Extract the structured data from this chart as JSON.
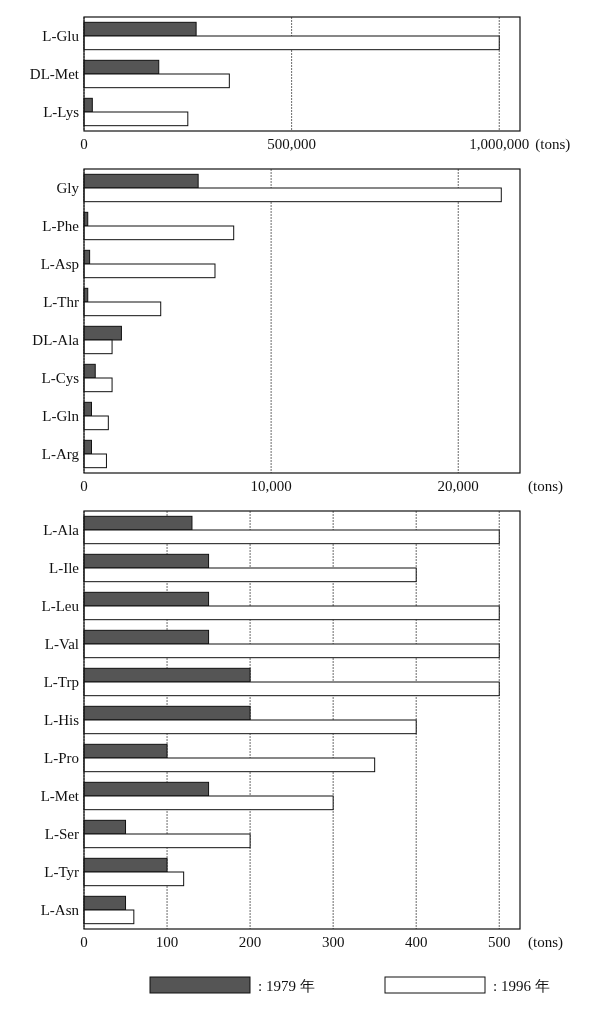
{
  "chart_data": [
    {
      "type": "bar",
      "orientation": "horizontal",
      "categories": [
        "L-Glu",
        "DL-Met",
        "L-Lys"
      ],
      "series": [
        {
          "color": "#555555",
          "values": [
            270000,
            180000,
            20000
          ]
        },
        {
          "color": "#ffffff",
          "values": [
            1000000,
            350000,
            250000
          ]
        }
      ],
      "xlim": [
        0,
        1050000
      ],
      "xticks": [
        0,
        {
          "value": 500000,
          "label": "500,000"
        },
        {
          "value": 1000000,
          "label": "1,000,000"
        }
      ],
      "xlabel": "(tons)",
      "grid": "x"
    },
    {
      "type": "bar",
      "orientation": "horizontal",
      "categories": [
        "Gly",
        "L-Phe",
        "L-Asp",
        "L-Thr",
        "DL-Ala",
        "L-Cys",
        "L-Gln",
        "L-Arg"
      ],
      "series": [
        {
          "color": "#555555",
          "values": [
            6100,
            200,
            300,
            200,
            2000,
            600,
            400,
            400
          ]
        },
        {
          "color": "#ffffff",
          "values": [
            22300,
            8000,
            7000,
            4100,
            1500,
            1500,
            1300,
            1200
          ]
        }
      ],
      "xlim": [
        0,
        23300
      ],
      "xticks": [
        0,
        {
          "value": 10000,
          "label": "10,000"
        },
        {
          "value": 20000,
          "label": "20,000"
        }
      ],
      "xlabel": "(tons)",
      "grid": "x"
    },
    {
      "type": "bar",
      "orientation": "horizontal",
      "categories": [
        "L-Ala",
        "L-Ile",
        "L-Leu",
        "L-Val",
        "L-Trp",
        "L-His",
        "L-Pro",
        "L-Met",
        "L-Ser",
        "L-Tyr",
        "L-Asn"
      ],
      "series": [
        {
          "name": ": 1979 年",
          "color": "#555555",
          "values": [
            130,
            150,
            150,
            150,
            200,
            200,
            100,
            150,
            50,
            100,
            50
          ]
        },
        {
          "name": ": 1996 年",
          "color": "#ffffff",
          "values": [
            500,
            400,
            500,
            500,
            500,
            400,
            350,
            300,
            200,
            120,
            60
          ]
        }
      ],
      "xlim": [
        0,
        525
      ],
      "xticks": [
        0,
        100,
        200,
        300,
        400,
        500
      ],
      "xlabel": "(tons)",
      "grid": "x",
      "legend": "bottom"
    }
  ]
}
